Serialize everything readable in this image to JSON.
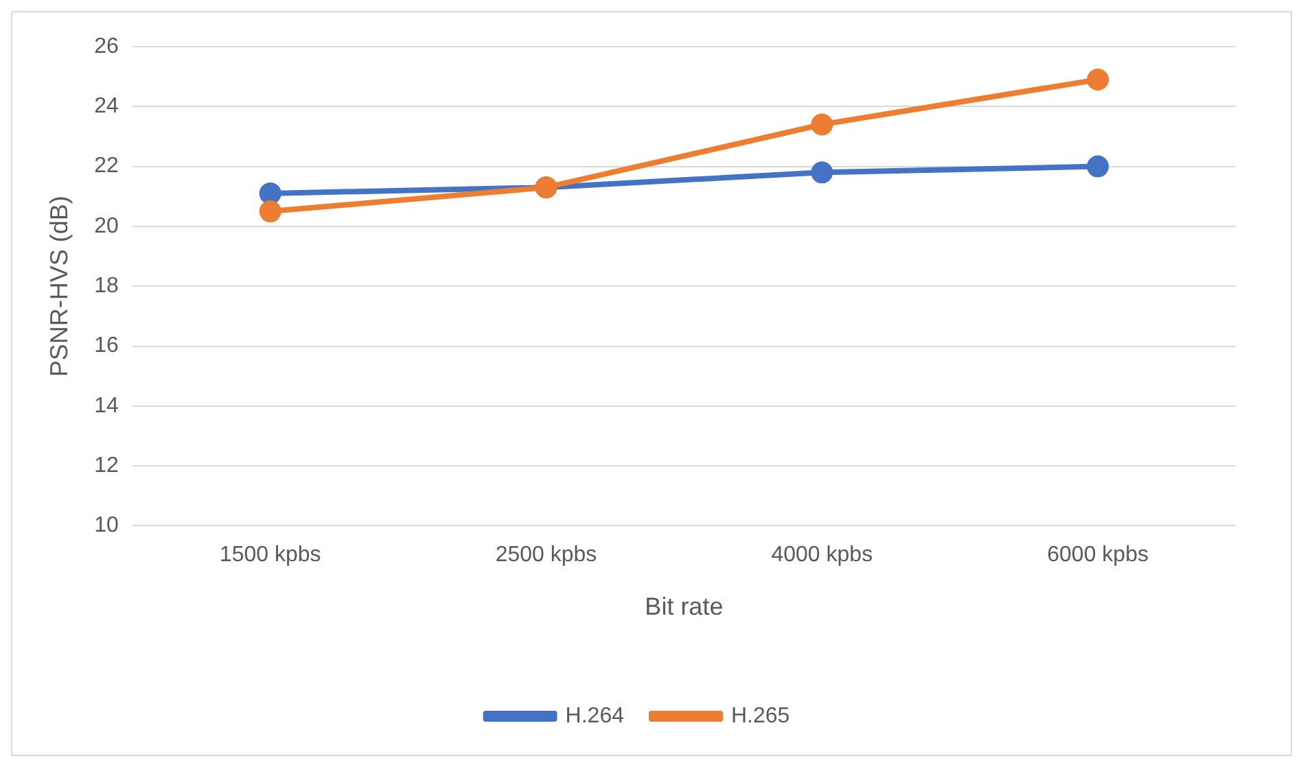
{
  "chart_data": {
    "type": "line",
    "xlabel": "Bit rate",
    "ylabel": "PSNR-HVS (dB)",
    "categories": [
      "1500 kpbs",
      "2500 kpbs",
      "4000 kpbs",
      "6000 kpbs"
    ],
    "series": [
      {
        "name": "H.264",
        "color": "#4472c4",
        "values": [
          21.1,
          21.3,
          21.8,
          22.0
        ]
      },
      {
        "name": "H.265",
        "color": "#ed7d31",
        "values": [
          20.5,
          21.3,
          23.4,
          24.9
        ]
      }
    ],
    "ylim": [
      10,
      26
    ],
    "yticks": [
      10,
      12,
      14,
      16,
      18,
      20,
      22,
      24,
      26
    ],
    "grid": "y",
    "legend": "bottom",
    "marker": "circle",
    "line_style": "solid"
  }
}
